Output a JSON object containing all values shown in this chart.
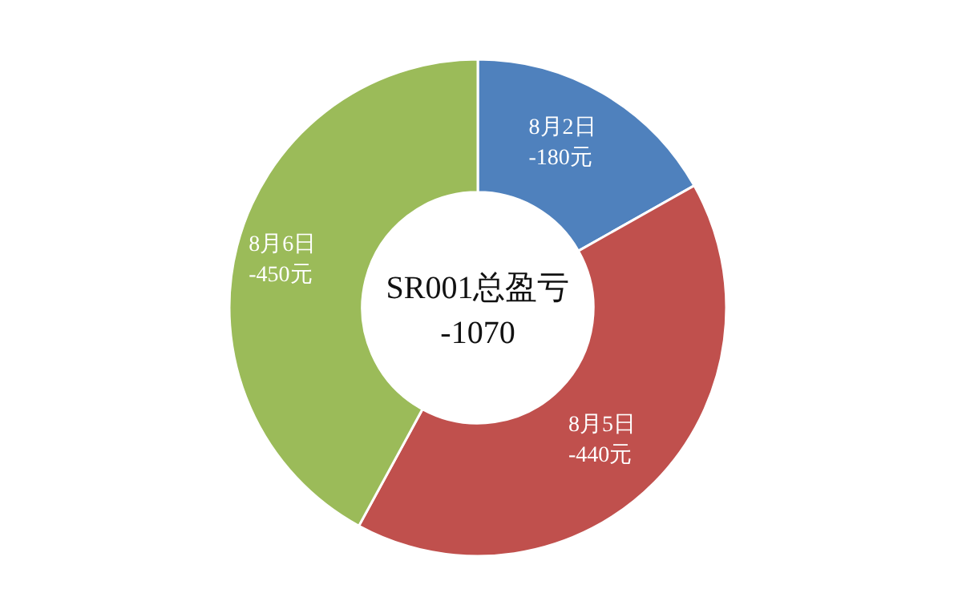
{
  "chart_data": {
    "type": "donut",
    "categories": [
      "8月2日",
      "8月5日",
      "8月6日"
    ],
    "values": [
      16.82,
      41.12,
      42.06
    ],
    "colors": [
      "#4f81bd",
      "#c0504d",
      "#9bbb59"
    ],
    "annotations": [
      "SR001总盈亏",
      "-1070",
      {
        "text": "-180元",
        "x": "8月2日"
      },
      {
        "text": "-440元",
        "x": "8月5日"
      },
      {
        "text": "-450元",
        "x": "8月6日"
      }
    ],
    "legend": false
  }
}
